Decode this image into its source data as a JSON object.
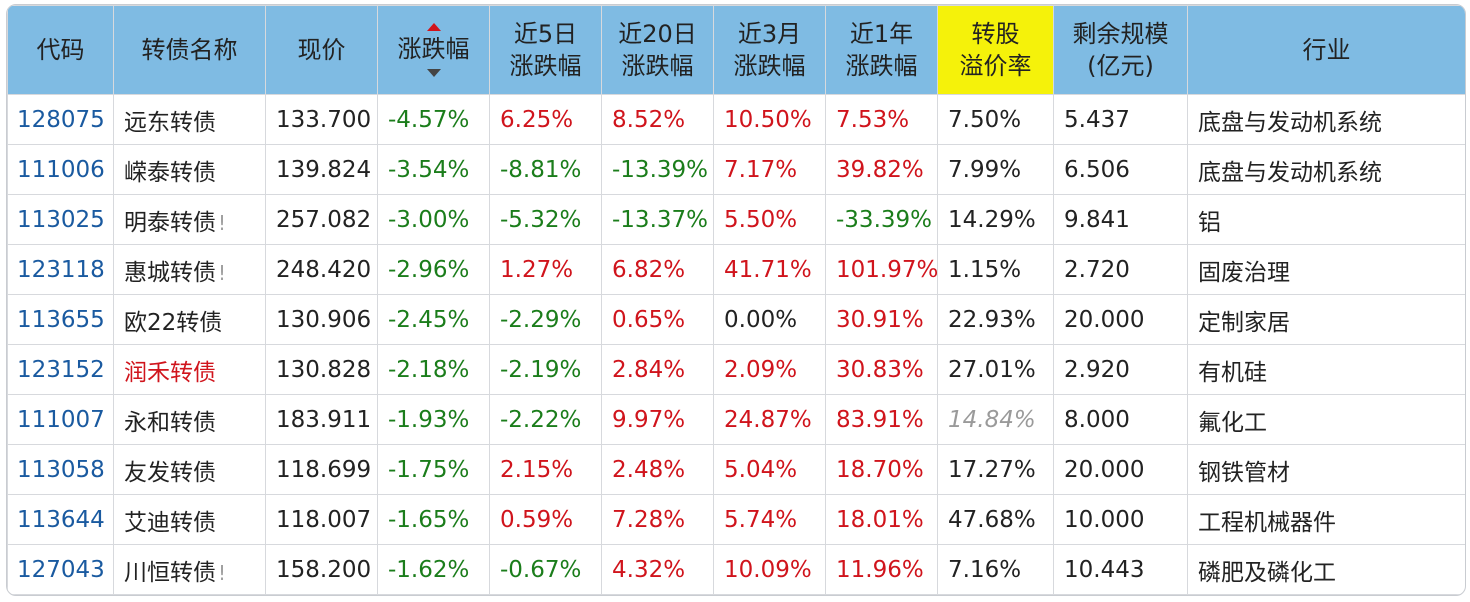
{
  "headers": {
    "code": "代码",
    "name": "转债名称",
    "price": "现价",
    "change": "涨跌幅",
    "d5_1": "近5日",
    "d5_2": "涨跌幅",
    "d20_1": "近20日",
    "d20_2": "涨跌幅",
    "m3_1": "近3月",
    "m3_2": "涨跌幅",
    "y1_1": "近1年",
    "y1_2": "涨跌幅",
    "prem_1": "转股",
    "prem_2": "溢价率",
    "scale_1": "剩余规模",
    "scale_2": "(亿元)",
    "industry": "行业"
  },
  "colors": {
    "header_bg": "#7fbbe3",
    "highlight": "#f5f20a",
    "up": "#d0141c",
    "down": "#1b7d1b",
    "code": "#1a5aa0"
  },
  "rows": [
    {
      "code": "128075",
      "name": "远东转债",
      "warn": "",
      "price": "133.700",
      "change": "-4.57%",
      "d5": "6.25%",
      "d20": "8.52%",
      "m3": "10.50%",
      "y1": "7.53%",
      "prem": "7.50%",
      "scale": "5.437",
      "industry": "底盘与发动机系统"
    },
    {
      "code": "111006",
      "name": "嵘泰转债",
      "warn": "",
      "price": "139.824",
      "change": "-3.54%",
      "d5": "-8.81%",
      "d20": "-13.39%",
      "m3": "7.17%",
      "y1": "39.82%",
      "prem": "7.99%",
      "scale": "6.506",
      "industry": "底盘与发动机系统"
    },
    {
      "code": "113025",
      "name": "明泰转债",
      "warn": "!",
      "price": "257.082",
      "change": "-3.00%",
      "d5": "-5.32%",
      "d20": "-13.37%",
      "m3": "5.50%",
      "y1": "-33.39%",
      "prem": "14.29%",
      "scale": "9.841",
      "industry": "铝"
    },
    {
      "code": "123118",
      "name": "惠城转债",
      "warn": "!",
      "price": "248.420",
      "change": "-2.96%",
      "d5": "1.27%",
      "d20": "6.82%",
      "m3": "41.71%",
      "y1": "101.97%",
      "prem": "1.15%",
      "scale": "2.720",
      "industry": "固废治理"
    },
    {
      "code": "113655",
      "name": "欧22转债",
      "warn": "",
      "price": "130.906",
      "change": "-2.45%",
      "d5": "-2.29%",
      "d20": "0.65%",
      "m3": "0.00%",
      "y1": "30.91%",
      "prem": "22.93%",
      "scale": "20.000",
      "industry": "定制家居"
    },
    {
      "code": "123152",
      "name": "润禾转债",
      "warn": "",
      "price": "130.828",
      "change": "-2.18%",
      "d5": "-2.19%",
      "d20": "2.84%",
      "m3": "2.09%",
      "y1": "30.83%",
      "prem": "27.01%",
      "scale": "2.920",
      "industry": "有机硅",
      "name_red": true
    },
    {
      "code": "111007",
      "name": "永和转债",
      "warn": "",
      "price": "183.911",
      "change": "-1.93%",
      "d5": "-2.22%",
      "d20": "9.97%",
      "m3": "24.87%",
      "y1": "83.91%",
      "prem": "14.84%",
      "scale": "8.000",
      "industry": "氟化工",
      "prem_gray": true
    },
    {
      "code": "113058",
      "name": "友发转债",
      "warn": "",
      "price": "118.699",
      "change": "-1.75%",
      "d5": "2.15%",
      "d20": "2.48%",
      "m3": "5.04%",
      "y1": "18.70%",
      "prem": "17.27%",
      "scale": "20.000",
      "industry": "钢铁管材"
    },
    {
      "code": "113644",
      "name": "艾迪转债",
      "warn": "",
      "price": "118.007",
      "change": "-1.65%",
      "d5": "0.59%",
      "d20": "7.28%",
      "m3": "5.74%",
      "y1": "18.01%",
      "prem": "47.68%",
      "scale": "10.000",
      "industry": "工程机械器件"
    },
    {
      "code": "127043",
      "name": "川恒转债",
      "warn": "!",
      "price": "158.200",
      "change": "-1.62%",
      "d5": "-0.67%",
      "d20": "4.32%",
      "m3": "10.09%",
      "y1": "11.96%",
      "prem": "7.16%",
      "scale": "10.443",
      "industry": "磷肥及磷化工"
    }
  ]
}
